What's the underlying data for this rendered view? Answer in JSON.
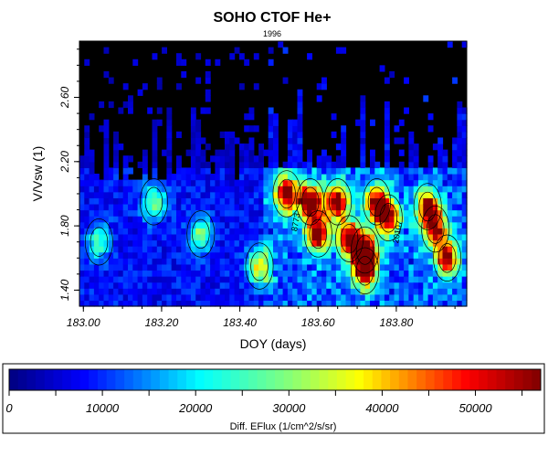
{
  "chart_data": {
    "type": "heatmap",
    "title": "SOHO CTOF He+",
    "subtitle": "1996",
    "xlabel": "DOY (days)",
    "ylabel": "V/Vsw (1)",
    "xlim": [
      182.99,
      183.98
    ],
    "ylim": [
      1.3,
      2.95
    ],
    "x_ticks": [
      183.0,
      183.2,
      183.4,
      183.6,
      183.8
    ],
    "x_tick_labels": [
      "183.00",
      "183.20",
      "183.40",
      "183.60",
      "183.80"
    ],
    "y_ticks": [
      1.4,
      1.8,
      2.2,
      2.6
    ],
    "y_tick_labels": [
      "1.40",
      "1.80",
      "2.20",
      "2.60"
    ],
    "background_color": "#000000",
    "colorbar": {
      "label": "Diff. EFlux (1/cm^2/s/sr)",
      "range": [
        0,
        57000
      ],
      "ticks": [
        0,
        10000,
        20000,
        30000,
        40000,
        50000
      ],
      "tick_labels": [
        "0",
        "10000",
        "20000",
        "30000",
        "40000",
        "50000"
      ],
      "colormap": [
        "#00007f",
        "#0000ff",
        "#00ffff",
        "#7fff7f",
        "#ffff00",
        "#ff0000",
        "#7f0000"
      ]
    },
    "contour_labels": [
      {
        "text": "8773",
        "x": 183.55,
        "y": 1.82
      },
      {
        "text": "20107",
        "x": 183.81,
        "y": 1.76
      }
    ],
    "hotspots": [
      {
        "x": 183.52,
        "y": 2.0,
        "value": 48000
      },
      {
        "x": 183.58,
        "y": 1.95,
        "value": 52000
      },
      {
        "x": 183.6,
        "y": 1.75,
        "value": 46000
      },
      {
        "x": 183.65,
        "y": 1.95,
        "value": 50000
      },
      {
        "x": 183.68,
        "y": 1.72,
        "value": 44000
      },
      {
        "x": 183.72,
        "y": 1.65,
        "value": 52000
      },
      {
        "x": 183.72,
        "y": 1.52,
        "value": 47000
      },
      {
        "x": 183.75,
        "y": 1.95,
        "value": 45000
      },
      {
        "x": 183.78,
        "y": 1.85,
        "value": 42000
      },
      {
        "x": 183.88,
        "y": 1.92,
        "value": 44000
      },
      {
        "x": 183.9,
        "y": 1.78,
        "value": 40000
      },
      {
        "x": 183.93,
        "y": 1.6,
        "value": 42000
      },
      {
        "x": 183.45,
        "y": 1.55,
        "value": 30000
      },
      {
        "x": 183.3,
        "y": 1.75,
        "value": 22000
      },
      {
        "x": 183.18,
        "y": 1.95,
        "value": 22000
      },
      {
        "x": 183.04,
        "y": 1.7,
        "value": 18000
      }
    ]
  }
}
